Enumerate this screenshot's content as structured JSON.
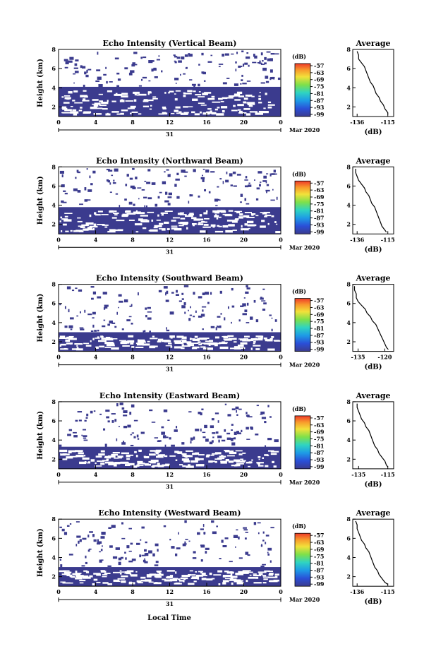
{
  "figure": {
    "xlabel": "Local Time"
  },
  "chart_data": [
    {
      "type": "heatmap",
      "title": "Echo Intensity (Vertical Beam)",
      "ylabel": "Height (km)",
      "yticks": [
        "2",
        "4",
        "6",
        "8"
      ],
      "ylim": [
        1.0,
        8.0
      ],
      "xticks": [
        "0",
        "4",
        "8",
        "12",
        "16",
        "20",
        "0"
      ],
      "xlim": [
        0,
        24
      ],
      "date_label": "31",
      "month_label": "Mar 2020",
      "colorbar": {
        "unit": "(dB)",
        "ticks": [
          "-57",
          "-63",
          "-69",
          "-75",
          "-81",
          "-87",
          "-93",
          "-99"
        ],
        "range": [
          -99,
          -57
        ]
      },
      "fill_top_km": 4.1,
      "mean_value_db": -99,
      "average_profile": {
        "title": "Average",
        "xlabel": "(dB)",
        "xticks": [
          "-136",
          "-115"
        ],
        "xlim": [
          -139,
          -111
        ],
        "yticks": [
          "2",
          "4",
          "6",
          "8"
        ],
        "ylim": [
          1.0,
          8.0
        ],
        "heights_km": [
          7.8,
          7.4,
          7.0,
          6.6,
          6.2,
          5.8,
          5.4,
          5.0,
          4.6,
          4.2,
          3.8,
          3.4,
          3.0,
          2.6,
          2.2,
          1.8,
          1.4,
          1.2
        ],
        "values_db": [
          -136,
          -135,
          -135,
          -133,
          -131,
          -130,
          -129,
          -128,
          -127,
          -125,
          -124,
          -123,
          -121,
          -120,
          -118,
          -117,
          -115,
          -115
        ]
      }
    },
    {
      "type": "heatmap",
      "title": "Echo Intensity (Northward Beam)",
      "ylabel": "Height (km)",
      "yticks": [
        "2",
        "4",
        "6",
        "8"
      ],
      "ylim": [
        1.0,
        8.0
      ],
      "xticks": [
        "0",
        "4",
        "8",
        "12",
        "16",
        "20",
        "0"
      ],
      "xlim": [
        0,
        24
      ],
      "date_label": "31",
      "month_label": "Mar 2020",
      "colorbar": {
        "unit": "(dB)",
        "ticks": [
          "-57",
          "-63",
          "-69",
          "-75",
          "-81",
          "-87",
          "-93",
          "-99"
        ],
        "range": [
          -99,
          -57
        ]
      },
      "fill_top_km": 3.8,
      "mean_value_db": -99,
      "average_profile": {
        "title": "Average",
        "xlabel": "(dB)",
        "xticks": [
          "-136",
          "-115"
        ],
        "xlim": [
          -139,
          -111
        ],
        "yticks": [
          "2",
          "4",
          "6",
          "8"
        ],
        "ylim": [
          1.0,
          8.0
        ],
        "heights_km": [
          7.8,
          7.4,
          7.0,
          6.6,
          6.2,
          5.8,
          5.4,
          5.0,
          4.6,
          4.2,
          3.8,
          3.4,
          3.0,
          2.6,
          2.2,
          1.8,
          1.4,
          1.2
        ],
        "values_db": [
          -137,
          -137,
          -136,
          -135,
          -133,
          -131,
          -130,
          -128,
          -127,
          -126,
          -124,
          -123,
          -122,
          -121,
          -120,
          -119,
          -117,
          -116
        ]
      }
    },
    {
      "type": "heatmap",
      "title": "Echo Intensity (Southward Beam)",
      "ylabel": "Height (km)",
      "yticks": [
        "2",
        "4",
        "6",
        "8"
      ],
      "ylim": [
        1.0,
        8.0
      ],
      "xticks": [
        "0",
        "4",
        "8",
        "12",
        "16",
        "20",
        "0"
      ],
      "xlim": [
        0,
        24
      ],
      "date_label": "31",
      "month_label": "Mar 2020",
      "colorbar": {
        "unit": "(dB)",
        "ticks": [
          "-57",
          "-63",
          "-69",
          "-75",
          "-81",
          "-87",
          "-93",
          "-99"
        ],
        "range": [
          -99,
          -57
        ]
      },
      "fill_top_km": 3.0,
      "mean_value_db": -99,
      "average_profile": {
        "title": "Average",
        "xlabel": "(dB)",
        "xticks": [
          "-135",
          "-120"
        ],
        "xlim": [
          -138,
          -115
        ],
        "yticks": [
          "2",
          "4",
          "6",
          "8"
        ],
        "ylim": [
          1.0,
          8.0
        ],
        "heights_km": [
          7.8,
          7.4,
          7.0,
          6.6,
          6.2,
          5.8,
          5.4,
          5.0,
          4.6,
          4.2,
          3.8,
          3.4,
          3.0,
          2.6,
          2.2,
          1.8,
          1.4,
          1.2
        ],
        "values_db": [
          -137,
          -137,
          -136,
          -136,
          -135,
          -133,
          -131,
          -130,
          -128,
          -127,
          -125,
          -124,
          -123,
          -122,
          -121,
          -120,
          -119,
          -118
        ]
      }
    },
    {
      "type": "heatmap",
      "title": "Echo Intensity (Eastward Beam)",
      "ylabel": "Height (km)",
      "yticks": [
        "2",
        "4",
        "6",
        "8"
      ],
      "ylim": [
        1.0,
        8.0
      ],
      "xticks": [
        "0",
        "4",
        "8",
        "12",
        "16",
        "20",
        "0"
      ],
      "xlim": [
        0,
        24
      ],
      "date_label": "31",
      "month_label": "Mar 2020",
      "colorbar": {
        "unit": "(dB)",
        "ticks": [
          "-57",
          "-63",
          "-69",
          "-75",
          "-81",
          "-87",
          "-93",
          "-99"
        ],
        "range": [
          -99,
          -57
        ]
      },
      "fill_top_km": 3.3,
      "mean_value_db": -99,
      "average_profile": {
        "title": "Average",
        "xlabel": "(dB)",
        "xticks": [
          "-135",
          "-115"
        ],
        "xlim": [
          -139,
          -111
        ],
        "yticks": [
          "2",
          "4",
          "6",
          "8"
        ],
        "ylim": [
          1.0,
          8.0
        ],
        "heights_km": [
          7.8,
          7.4,
          7.0,
          6.6,
          6.2,
          5.8,
          5.4,
          5.0,
          4.6,
          4.2,
          3.8,
          3.4,
          3.0,
          2.6,
          2.2,
          1.8,
          1.4,
          1.2
        ],
        "values_db": [
          -136,
          -136,
          -135,
          -134,
          -133,
          -131,
          -130,
          -128,
          -127,
          -126,
          -125,
          -124,
          -122,
          -121,
          -119,
          -117,
          -116,
          -115
        ]
      }
    },
    {
      "type": "heatmap",
      "title": "Echo Intensity (Westward Beam)",
      "ylabel": "Height (km)",
      "yticks": [
        "2",
        "4",
        "6",
        "8"
      ],
      "ylim": [
        1.0,
        8.0
      ],
      "xticks": [
        "0",
        "4",
        "8",
        "12",
        "16",
        "20",
        "0"
      ],
      "xlim": [
        0,
        24
      ],
      "date_label": "31",
      "month_label": "Mar 2020",
      "colorbar": {
        "unit": "(dB)",
        "ticks": [
          "-57",
          "-63",
          "-69",
          "-75",
          "-81",
          "-87",
          "-93",
          "-99"
        ],
        "range": [
          -99,
          -57
        ]
      },
      "fill_top_km": 3.0,
      "mean_value_db": -99,
      "average_profile": {
        "title": "Average",
        "xlabel": "(dB)",
        "xticks": [
          "-136",
          "-115"
        ],
        "xlim": [
          -139,
          -111
        ],
        "yticks": [
          "2",
          "4",
          "6",
          "8"
        ],
        "ylim": [
          1.0,
          8.0
        ],
        "heights_km": [
          7.8,
          7.4,
          7.0,
          6.6,
          6.2,
          5.8,
          5.4,
          5.0,
          4.6,
          4.2,
          3.8,
          3.4,
          3.0,
          2.6,
          2.2,
          1.8,
          1.4,
          1.2
        ],
        "values_db": [
          -137,
          -136,
          -136,
          -135,
          -134,
          -133,
          -131,
          -130,
          -128,
          -127,
          -126,
          -125,
          -124,
          -122,
          -121,
          -119,
          -117,
          -115
        ]
      }
    }
  ]
}
